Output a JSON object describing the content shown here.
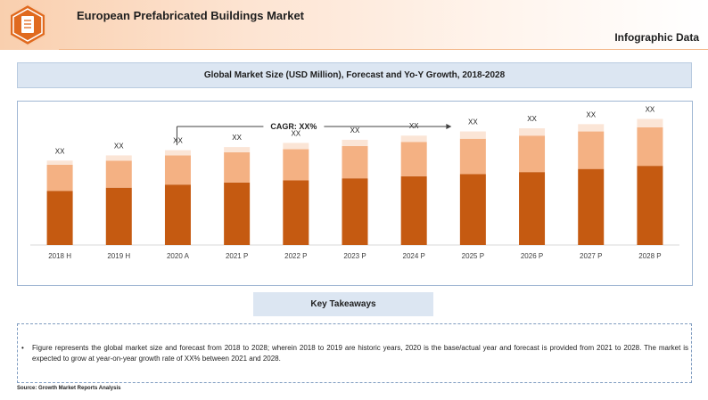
{
  "header": {
    "title": "European Prefabricated Buildings Market",
    "subtitle": "Infographic Data",
    "logo_icon": "document-icon",
    "accent_color": "#e06a1f"
  },
  "chart_title": "Global Market Size (USD Million), Forecast and Yo-Y Growth, 2018-2028",
  "chart_data": {
    "type": "bar",
    "stacked": true,
    "categories": [
      "2018 H",
      "2019 H",
      "2020 A",
      "2021 P",
      "2022 P",
      "2023 P",
      "2024 P",
      "2025 P",
      "2026 P",
      "2027 P",
      "2028 P"
    ],
    "series": [
      {
        "color": "#c55a11",
        "values": [
          52,
          55,
          58,
          60,
          62,
          64,
          66,
          68,
          70,
          73,
          76
        ]
      },
      {
        "color": "#f4b183",
        "values": [
          25,
          26,
          28,
          29,
          30,
          31,
          33,
          34,
          35,
          36,
          37
        ]
      },
      {
        "color": "#fbe5d6",
        "values": [
          4,
          5,
          5,
          5,
          6,
          6,
          6,
          7,
          7,
          7,
          8
        ]
      }
    ],
    "data_labels": [
      "XX",
      "XX",
      "XX",
      "XX",
      "XX",
      "XX",
      "XX",
      "XX",
      "XX",
      "XX",
      "XX"
    ],
    "ylim": [
      0,
      130
    ],
    "grid": false,
    "annotation": {
      "label": "CAGR: XX%",
      "from_category": "2020 A",
      "to_category": "2025 P"
    }
  },
  "takeaways": {
    "title": "Key Takeaways",
    "bullet": "•",
    "text": "Figure represents the global market size and forecast from 2018 to 2028; wherein 2018 to 2019 are historic years, 2020 is the base/actual year and forecast is provided from 2021 to 2028. The market is expected to grow at year-on-year growth rate of XX% between 2021 and 2028."
  },
  "source": "Source: Growth Market Reports Analysis"
}
